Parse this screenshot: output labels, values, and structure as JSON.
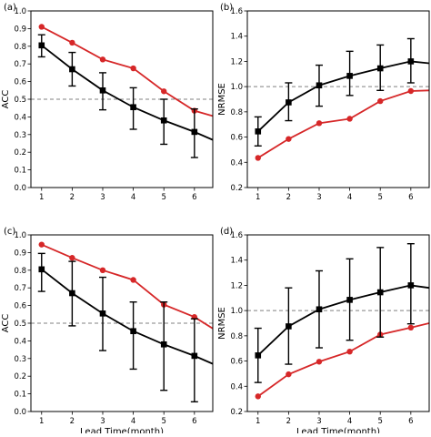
{
  "colors": {
    "red_series": "#d62728",
    "black_series": "#000000",
    "reference_line": "#808080"
  },
  "chart_data": [
    {
      "type": "line",
      "panel_label": "(a)",
      "xlabel": "",
      "ylabel": "ACC",
      "x": [
        1,
        2,
        3,
        4,
        5,
        6
      ],
      "xlim": [
        0.65,
        6.6
      ],
      "ylim": [
        0,
        1.0
      ],
      "xticks": [
        1,
        2,
        3,
        4,
        5,
        6
      ],
      "yticks": [
        0,
        0.1,
        0.2,
        0.3,
        0.4,
        0.5,
        0.6,
        0.7,
        0.8,
        0.9,
        1.0
      ],
      "ytick_labels": [
        "0.0",
        "0.1",
        "0.2",
        "0.3",
        "0.4",
        "0.5",
        "0.6",
        "0.7",
        "0.8",
        "0.9",
        "1.0"
      ],
      "reference_line": 0.5,
      "series": [
        {
          "color": "#d62728",
          "marker": "circle",
          "x": [
            1,
            2,
            3,
            4,
            5,
            6,
            6.6
          ],
          "values": [
            0.91,
            0.82,
            0.725,
            0.675,
            0.545,
            0.435,
            0.405
          ]
        },
        {
          "color": "#000000",
          "marker": "square",
          "x": [
            1,
            2,
            3,
            4,
            5,
            6,
            6.6
          ],
          "values": [
            0.805,
            0.67,
            0.55,
            0.455,
            0.38,
            0.315,
            0.27
          ],
          "error_low": [
            0.74,
            0.575,
            0.44,
            0.33,
            0.245,
            0.17,
            null
          ],
          "error_high": [
            0.865,
            0.765,
            0.65,
            0.565,
            0.5,
            0.445,
            null
          ]
        }
      ],
      "grid": false
    },
    {
      "type": "line",
      "panel_label": "(b)",
      "xlabel": "",
      "ylabel": "NRMSE",
      "x": [
        1,
        2,
        3,
        4,
        5,
        6
      ],
      "xlim": [
        0.65,
        6.6
      ],
      "ylim": [
        0.2,
        1.6
      ],
      "xticks": [
        1,
        2,
        3,
        4,
        5,
        6
      ],
      "yticks": [
        0.2,
        0.4,
        0.6,
        0.8,
        1.0,
        1.2,
        1.4,
        1.6
      ],
      "ytick_labels": [
        "0.2",
        "0.4",
        "0.6",
        "0.8",
        "1.0",
        "1.2",
        "1.4",
        "1.6"
      ],
      "reference_line": 1.0,
      "series": [
        {
          "color": "#d62728",
          "marker": "circle",
          "x": [
            1,
            2,
            3,
            4,
            5,
            6,
            6.6
          ],
          "values": [
            0.435,
            0.585,
            0.71,
            0.745,
            0.885,
            0.965,
            0.97
          ]
        },
        {
          "color": "#000000",
          "marker": "square",
          "x": [
            1,
            2,
            3,
            4,
            5,
            6,
            6.6
          ],
          "values": [
            0.645,
            0.875,
            1.01,
            1.085,
            1.145,
            1.2,
            1.185
          ],
          "error_low": [
            0.53,
            0.73,
            0.845,
            0.93,
            0.97,
            1.03,
            null
          ],
          "error_high": [
            0.76,
            1.03,
            1.17,
            1.28,
            1.33,
            1.38,
            null
          ]
        }
      ],
      "grid": false
    },
    {
      "type": "line",
      "panel_label": "(c)",
      "xlabel": "Lead Time(month)",
      "ylabel": "ACC",
      "x": [
        1,
        2,
        3,
        4,
        5,
        6
      ],
      "xlim": [
        0.65,
        6.6
      ],
      "ylim": [
        0,
        1.0
      ],
      "xticks": [
        1,
        2,
        3,
        4,
        5,
        6
      ],
      "yticks": [
        0,
        0.1,
        0.2,
        0.3,
        0.4,
        0.5,
        0.6,
        0.7,
        0.8,
        0.9,
        1.0
      ],
      "ytick_labels": [
        "0.0",
        "0.1",
        "0.2",
        "0.3",
        "0.4",
        "0.5",
        "0.6",
        "0.7",
        "0.8",
        "0.9",
        "1.0"
      ],
      "reference_line": 0.5,
      "series": [
        {
          "color": "#d62728",
          "marker": "circle",
          "x": [
            1,
            2,
            3,
            4,
            5,
            6,
            6.6
          ],
          "values": [
            0.945,
            0.87,
            0.8,
            0.745,
            0.605,
            0.535,
            0.47
          ]
        },
        {
          "color": "#000000",
          "marker": "square",
          "x": [
            1,
            2,
            3,
            4,
            5,
            6,
            6.6
          ],
          "values": [
            0.805,
            0.67,
            0.555,
            0.455,
            0.38,
            0.315,
            0.27
          ],
          "error_low": [
            0.68,
            0.485,
            0.345,
            0.24,
            0.12,
            0.055,
            null
          ],
          "error_high": [
            0.895,
            0.85,
            0.76,
            0.62,
            0.62,
            0.525,
            null
          ]
        }
      ],
      "grid": false
    },
    {
      "type": "line",
      "panel_label": "(d)",
      "xlabel": "Lead Time(month)",
      "ylabel": "NRMSE",
      "x": [
        1,
        2,
        3,
        4,
        5,
        6
      ],
      "xlim": [
        0.65,
        6.6
      ],
      "ylim": [
        0.2,
        1.6
      ],
      "xticks": [
        1,
        2,
        3,
        4,
        5,
        6
      ],
      "yticks": [
        0.2,
        0.4,
        0.6,
        0.8,
        1.0,
        1.2,
        1.4,
        1.6
      ],
      "ytick_labels": [
        "0.2",
        "0.4",
        "0.6",
        "0.8",
        "1.0",
        "1.2",
        "1.4",
        "1.6"
      ],
      "reference_line": 1.0,
      "series": [
        {
          "color": "#d62728",
          "marker": "circle",
          "x": [
            1,
            2,
            3,
            4,
            5,
            6,
            6.6
          ],
          "values": [
            0.32,
            0.495,
            0.595,
            0.675,
            0.81,
            0.865,
            0.9
          ]
        },
        {
          "color": "#000000",
          "marker": "square",
          "x": [
            1,
            2,
            3,
            4,
            5,
            6,
            6.6
          ],
          "values": [
            0.645,
            0.875,
            1.01,
            1.085,
            1.145,
            1.2,
            1.18
          ],
          "error_low": [
            0.43,
            0.575,
            0.705,
            0.765,
            0.79,
            0.895,
            null
          ],
          "error_high": [
            0.86,
            1.18,
            1.315,
            1.41,
            1.5,
            1.53,
            null
          ]
        }
      ],
      "grid": false
    }
  ]
}
